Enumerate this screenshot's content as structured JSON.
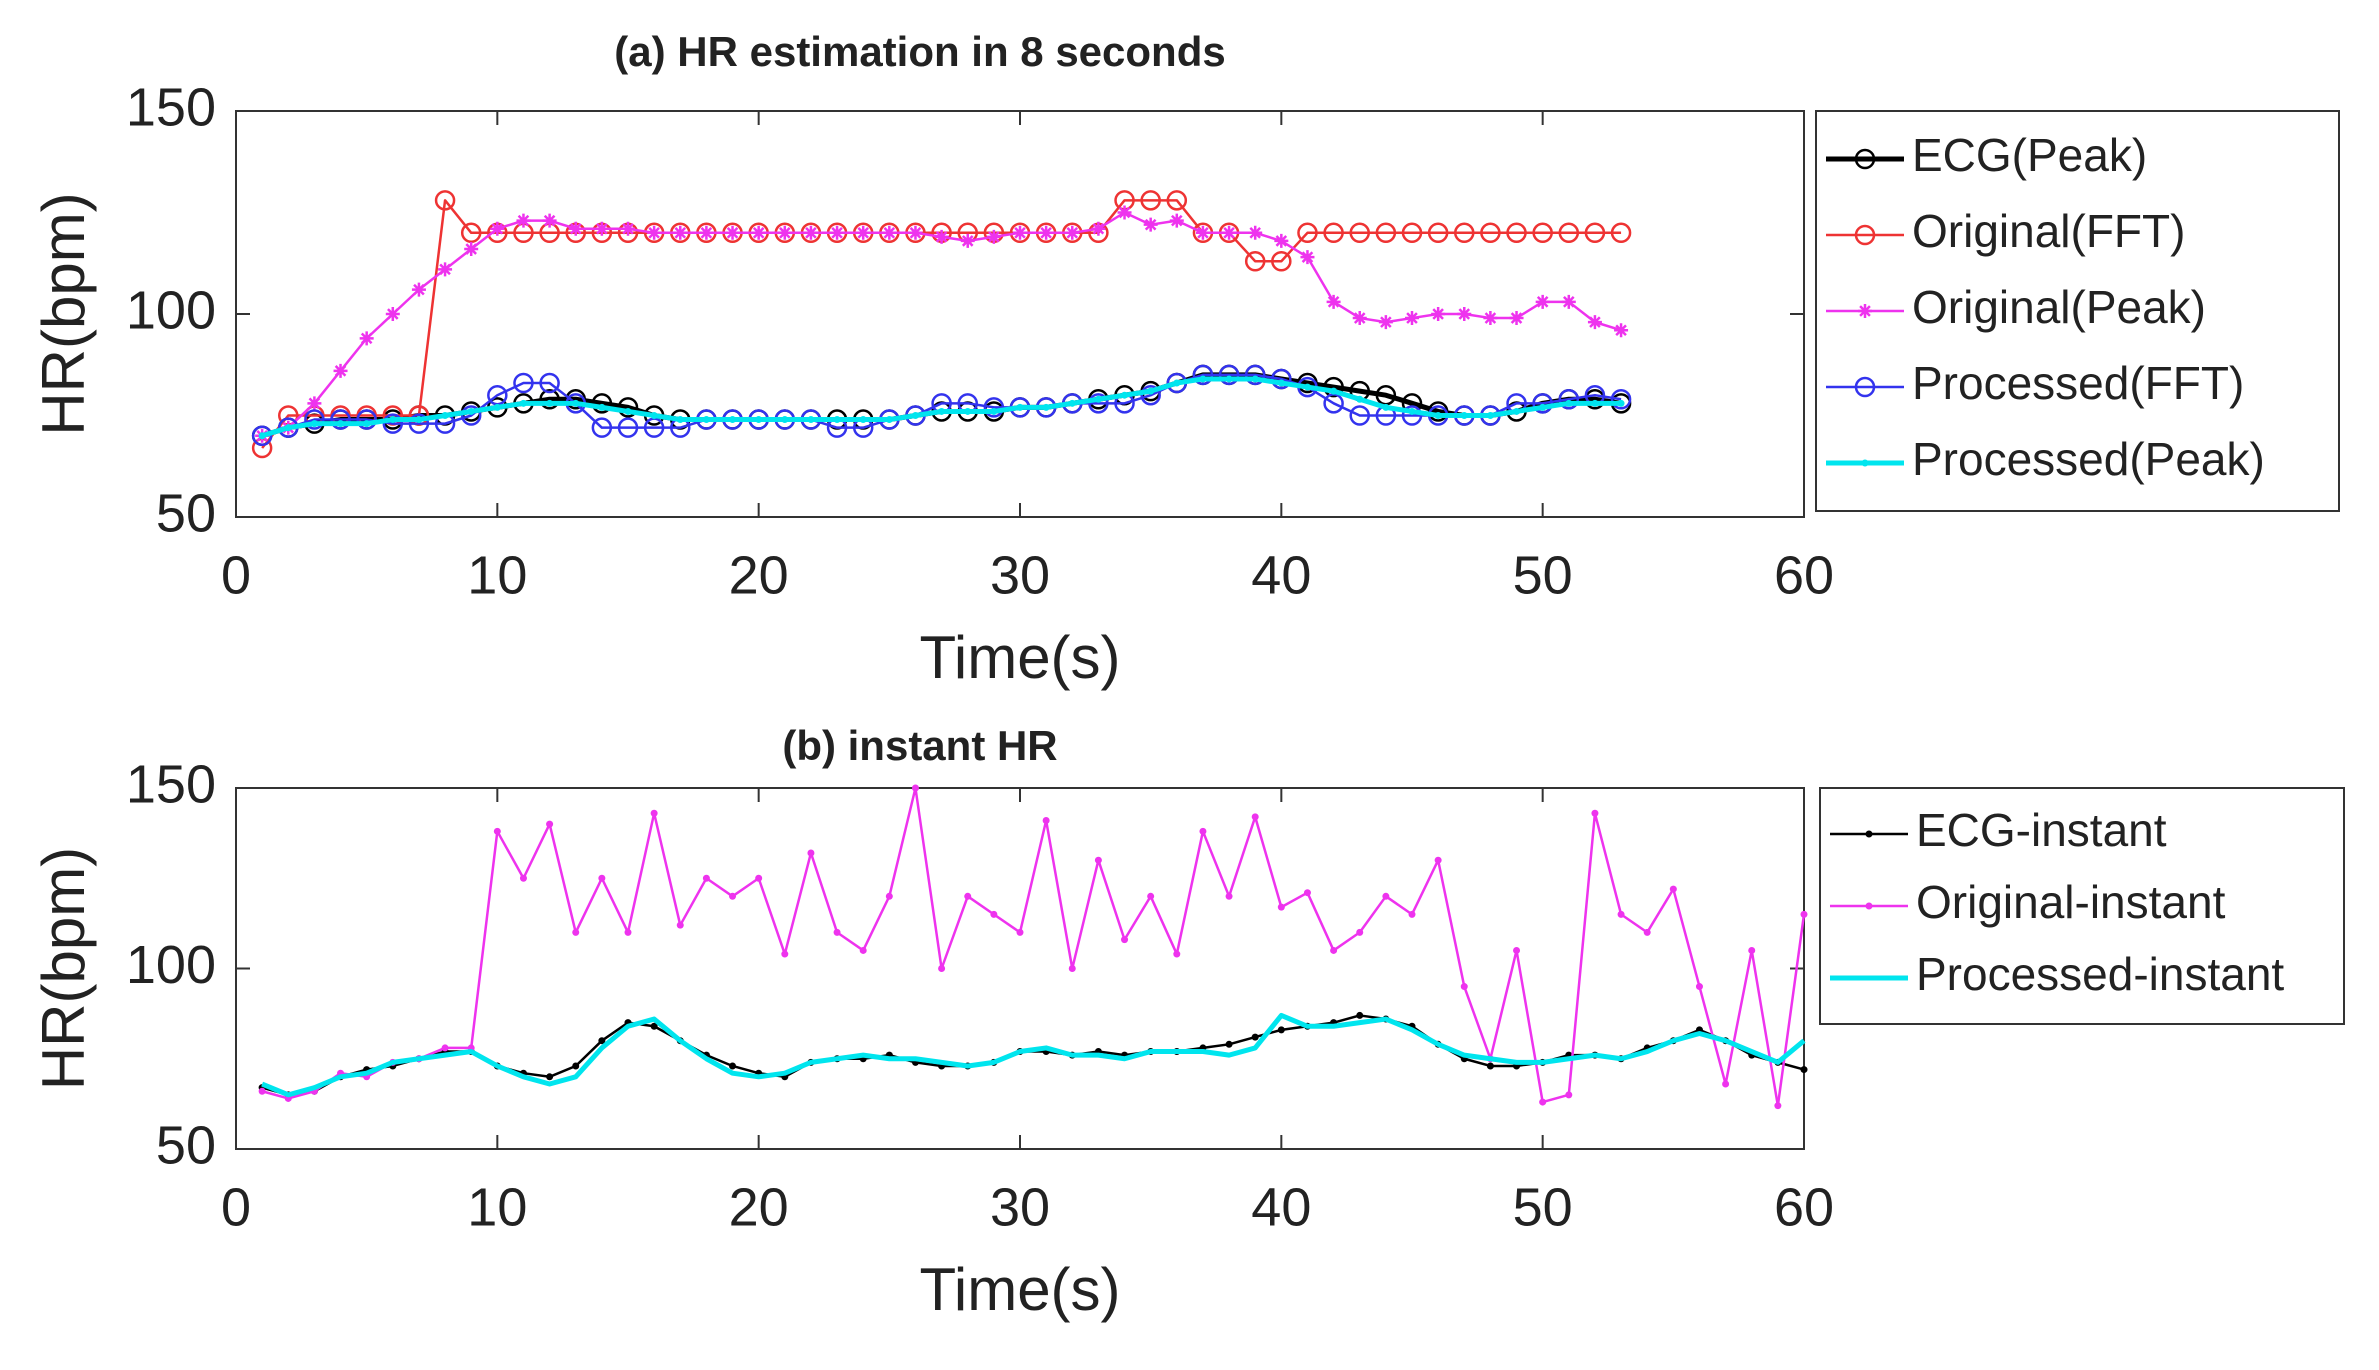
{
  "chart_data": [
    {
      "type": "line",
      "title": "(a) HR estimation in 8 seconds",
      "xlabel": "Time(s)",
      "ylabel": "HR(bpm)",
      "xlim": [
        0,
        60
      ],
      "xticks": [
        0,
        10,
        20,
        30,
        40,
        50,
        60
      ],
      "ylim": [
        50,
        150
      ],
      "yticks": [
        50,
        100,
        150
      ],
      "x": [
        1,
        2,
        3,
        4,
        5,
        6,
        7,
        8,
        9,
        10,
        11,
        12,
        13,
        14,
        15,
        16,
        17,
        18,
        19,
        20,
        21,
        22,
        23,
        24,
        25,
        26,
        27,
        28,
        29,
        30,
        31,
        32,
        33,
        34,
        35,
        36,
        37,
        38,
        39,
        40,
        41,
        42,
        43,
        44,
        45,
        46,
        47,
        48,
        49,
        50,
        51,
        52,
        53
      ],
      "series": [
        {
          "name": "ECG(Peak)",
          "color": "#000000",
          "marker": "o",
          "width": 5,
          "values": [
            70,
            72,
            73,
            74,
            74,
            74,
            75,
            75,
            76,
            77,
            78,
            79,
            79,
            78,
            77,
            75,
            74,
            74,
            74,
            74,
            74,
            74,
            74,
            74,
            74,
            75,
            76,
            76,
            76,
            77,
            77,
            78,
            79,
            80,
            81,
            83,
            85,
            85,
            85,
            84,
            83,
            82,
            81,
            80,
            78,
            76,
            75,
            75,
            76,
            78,
            79,
            79,
            78
          ]
        },
        {
          "name": "Original(FFT)",
          "color": "#ee3333",
          "marker": "o",
          "width": 2.5,
          "values": [
            67,
            75,
            75,
            75,
            75,
            75,
            75,
            128,
            120,
            120,
            120,
            120,
            120,
            120,
            120,
            120,
            120,
            120,
            120,
            120,
            120,
            120,
            120,
            120,
            120,
            120,
            120,
            120,
            120,
            120,
            120,
            120,
            120,
            128,
            128,
            128,
            120,
            120,
            113,
            113,
            120,
            120,
            120,
            120,
            120,
            120,
            120,
            120,
            120,
            120,
            120,
            120,
            120
          ]
        },
        {
          "name": "Original(Peak)",
          "color": "#ee33ee",
          "marker": "*",
          "width": 2.5,
          "values": [
            70,
            72,
            78,
            86,
            94,
            100,
            106,
            111,
            116,
            121,
            123,
            123,
            121,
            121,
            121,
            120,
            120,
            120,
            120,
            120,
            120,
            120,
            120,
            120,
            120,
            120,
            119,
            118,
            119,
            120,
            120,
            120,
            121,
            125,
            122,
            123,
            120,
            120,
            120,
            118,
            114,
            103,
            99,
            98,
            99,
            100,
            100,
            99,
            99,
            103,
            103,
            98,
            96
          ]
        },
        {
          "name": "Processed(FFT)",
          "color": "#3333ee",
          "marker": "o",
          "width": 2.5,
          "values": [
            70,
            72,
            74,
            74,
            74,
            73,
            73,
            73,
            75,
            80,
            83,
            83,
            78,
            72,
            72,
            72,
            72,
            74,
            74,
            74,
            74,
            74,
            72,
            72,
            74,
            75,
            78,
            78,
            77,
            77,
            77,
            78,
            78,
            78,
            80,
            83,
            85,
            85,
            85,
            84,
            82,
            78,
            75,
            75,
            75,
            75,
            75,
            75,
            78,
            78,
            79,
            80,
            79
          ]
        },
        {
          "name": "Processed(Peak)",
          "color": "#00e5ee",
          "marker": ".",
          "width": 5,
          "values": [
            70,
            72,
            73,
            73,
            73,
            74,
            74,
            75,
            76,
            77,
            78,
            78,
            78,
            77,
            76,
            75,
            74,
            74,
            74,
            74,
            74,
            74,
            74,
            74,
            74,
            75,
            76,
            76,
            76,
            77,
            77,
            78,
            79,
            80,
            81,
            83,
            84,
            84,
            84,
            83,
            82,
            81,
            79,
            77,
            76,
            75,
            75,
            75,
            76,
            77,
            78,
            78,
            78
          ]
        }
      ]
    },
    {
      "type": "line",
      "title": "(b) instant HR",
      "xlabel": "Time(s)",
      "ylabel": "HR(bpm)",
      "xlim": [
        0,
        60
      ],
      "xticks": [
        0,
        10,
        20,
        30,
        40,
        50,
        60
      ],
      "ylim": [
        50,
        150
      ],
      "yticks": [
        50,
        100,
        150
      ],
      "x": [
        1,
        2,
        3,
        4,
        5,
        6,
        7,
        8,
        9,
        10,
        11,
        12,
        13,
        14,
        15,
        16,
        17,
        18,
        19,
        20,
        21,
        22,
        23,
        24,
        25,
        26,
        27,
        28,
        29,
        30,
        31,
        32,
        33,
        34,
        35,
        36,
        37,
        38,
        39,
        40,
        41,
        42,
        43,
        44,
        45,
        46,
        47,
        48,
        49,
        50,
        51,
        52,
        53,
        54,
        55,
        56,
        57,
        58,
        59,
        60
      ],
      "series": [
        {
          "name": "ECG-instant",
          "color": "#000000",
          "marker": ".",
          "width": 2.5,
          "values": [
            67,
            65,
            66,
            70,
            72,
            73,
            75,
            77,
            77,
            73,
            71,
            70,
            73,
            80,
            85,
            84,
            80,
            76,
            73,
            71,
            70,
            74,
            75,
            75,
            76,
            74,
            73,
            73,
            74,
            77,
            77,
            76,
            77,
            76,
            77,
            77,
            78,
            79,
            81,
            83,
            84,
            85,
            87,
            86,
            84,
            79,
            75,
            73,
            73,
            74,
            76,
            76,
            75,
            78,
            80,
            83,
            80,
            76,
            74,
            72
          ]
        },
        {
          "name": "Original-instant",
          "color": "#ee33ee",
          "marker": ".",
          "width": 2.5,
          "values": [
            66,
            64,
            66,
            71,
            70,
            74,
            75,
            78,
            78,
            138,
            125,
            140,
            110,
            125,
            110,
            143,
            112,
            125,
            120,
            125,
            104,
            132,
            110,
            105,
            120,
            150,
            100,
            120,
            115,
            110,
            141,
            100,
            130,
            108,
            120,
            104,
            138,
            120,
            142,
            117,
            121,
            105,
            110,
            120,
            115,
            130,
            95,
            75,
            105,
            63,
            65,
            143,
            115,
            110,
            122,
            95,
            68,
            105,
            62,
            115
          ]
        },
        {
          "name": "Processed-instant",
          "color": "#00e5ee",
          "marker": "none",
          "width": 5,
          "values": [
            68,
            65,
            67,
            70,
            71,
            74,
            75,
            76,
            77,
            73,
            70,
            68,
            70,
            78,
            84,
            86,
            80,
            75,
            71,
            70,
            71,
            74,
            75,
            76,
            75,
            75,
            74,
            73,
            74,
            77,
            78,
            76,
            76,
            75,
            77,
            77,
            77,
            76,
            78,
            87,
            84,
            84,
            85,
            86,
            83,
            79,
            76,
            75,
            74,
            74,
            75,
            76,
            75,
            77,
            80,
            82,
            80,
            77,
            74,
            80
          ]
        }
      ]
    }
  ]
}
